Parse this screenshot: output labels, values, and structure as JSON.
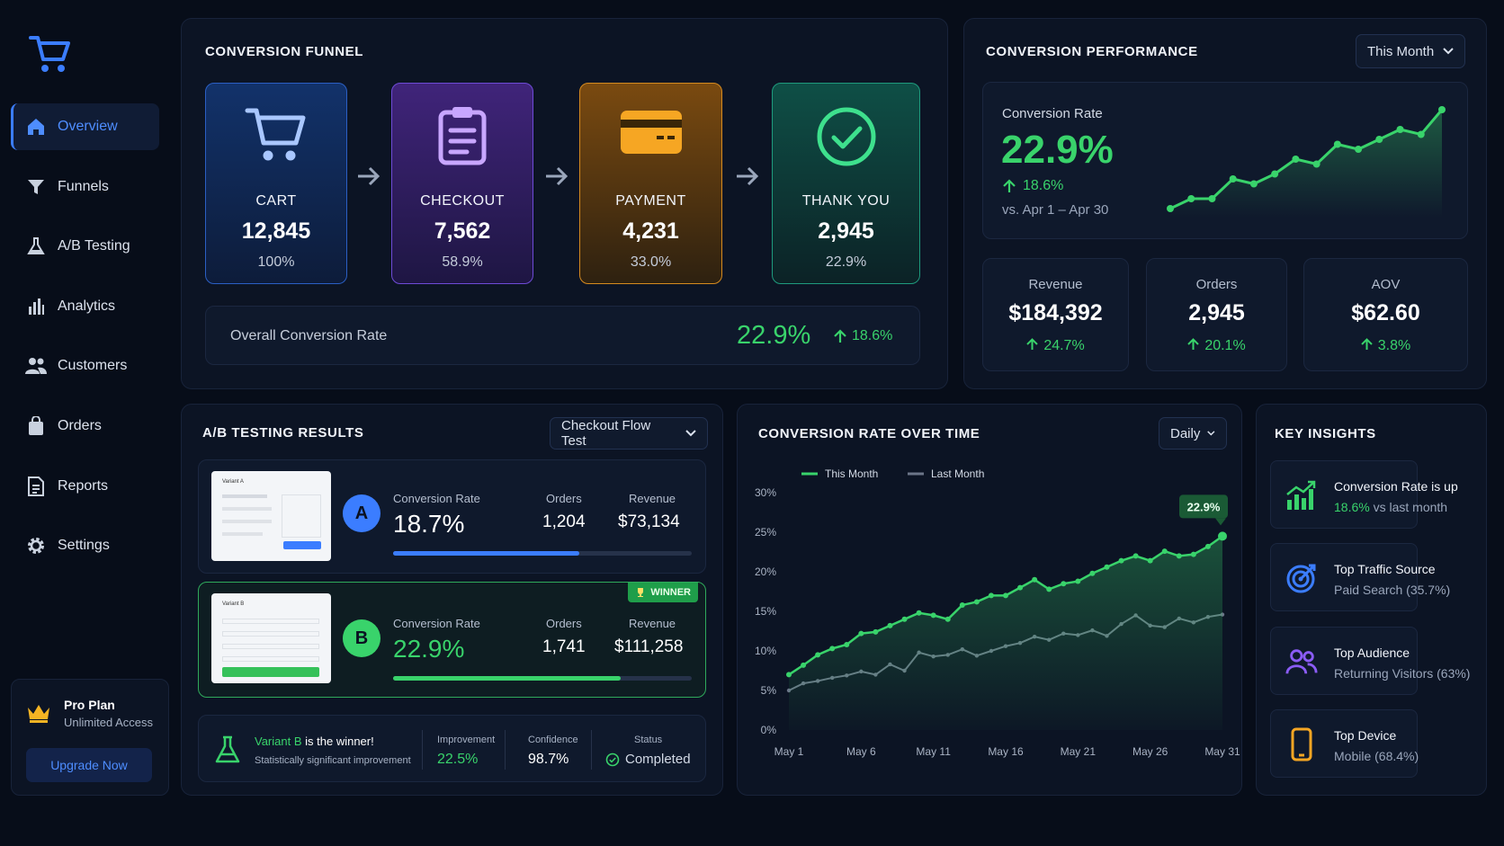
{
  "sidebar": {
    "logo": "shopping-cart-logo",
    "items": [
      {
        "label": "Overview",
        "icon": "home-icon",
        "active": true
      },
      {
        "label": "Funnels",
        "icon": "funnel-icon"
      },
      {
        "label": "A/B Testing",
        "icon": "flask-icon"
      },
      {
        "label": "Analytics",
        "icon": "bar-chart-icon"
      },
      {
        "label": "Customers",
        "icon": "users-icon"
      },
      {
        "label": "Orders",
        "icon": "bag-icon"
      },
      {
        "label": "Reports",
        "icon": "document-icon"
      },
      {
        "label": "Settings",
        "icon": "gear-icon"
      }
    ],
    "plan": {
      "title": "Pro Plan",
      "subtitle": "Unlimited Access",
      "button": "Upgrade Now"
    }
  },
  "funnel": {
    "title": "CONVERSION FUNNEL",
    "steps": [
      {
        "label": "CART",
        "value": "12,845",
        "pct": "100%"
      },
      {
        "label": "CHECKOUT",
        "value": "7,562",
        "pct": "58.9%"
      },
      {
        "label": "PAYMENT",
        "value": "4,231",
        "pct": "33.0%"
      },
      {
        "label": "THANK YOU",
        "value": "2,945",
        "pct": "22.9%"
      }
    ],
    "overall": {
      "label": "Overall Conversion Rate",
      "value": "22.9%",
      "delta": "18.6%"
    }
  },
  "performance": {
    "title": "CONVERSION PERFORMANCE",
    "range": "This Month",
    "rate_label": "Conversion Rate",
    "rate_value": "22.9%",
    "rate_delta": "18.6%",
    "compare": "vs. Apr 1 – Apr 30",
    "kpis": [
      {
        "label": "Revenue",
        "value": "$184,392",
        "delta": "24.7%"
      },
      {
        "label": "Orders",
        "value": "2,945",
        "delta": "20.1%"
      },
      {
        "label": "AOV",
        "value": "$62.60",
        "delta": "3.8%"
      }
    ]
  },
  "ab": {
    "title": "A/B TESTING RESULTS",
    "test": "Checkout Flow Test",
    "variants": [
      {
        "badge": "A",
        "thumb_title": "Variant A",
        "rate_label": "Conversion Rate",
        "rate": "18.7%",
        "rate_fraction": 0.187,
        "orders_label": "Orders",
        "orders": "1,204",
        "revenue_label": "Revenue",
        "revenue": "$73,134"
      },
      {
        "badge": "B",
        "thumb_title": "Variant B",
        "rate_label": "Conversion Rate",
        "rate": "22.9%",
        "rate_fraction": 0.229,
        "orders_label": "Orders",
        "orders": "1,741",
        "revenue_label": "Revenue",
        "revenue": "$111,258",
        "winner": "WINNER"
      }
    ],
    "summary": {
      "winner_name": "Variant B",
      "winner_text": "is the winner!",
      "sub": "Statistically significant improvement",
      "improvement_label": "Improvement",
      "improvement": "22.5%",
      "confidence_label": "Confidence",
      "confidence": "98.7%",
      "status_label": "Status",
      "status": "Completed"
    }
  },
  "over_time": {
    "title": "CONVERSION RATE OVER TIME",
    "granularity": "Daily",
    "callout": "22.9%"
  },
  "insights": {
    "title": "KEY INSIGHTS",
    "items": [
      {
        "icon": "trend-up-chart-icon",
        "title": "Conversion Rate is up",
        "sub_highlight": "18.6%",
        "sub": " vs last month"
      },
      {
        "icon": "target-icon",
        "title": "Top Traffic Source",
        "sub": "Paid Search (35.7%)"
      },
      {
        "icon": "audience-users-icon",
        "title": "Top Audience",
        "sub": "Returning Visitors (63%)"
      },
      {
        "icon": "mobile-phone-icon",
        "title": "Top Device",
        "sub": "Mobile (68.4%)"
      }
    ]
  },
  "chart_data": [
    {
      "type": "area",
      "title": "",
      "x": [
        1,
        2,
        3,
        4,
        5,
        6,
        7,
        8,
        9,
        10,
        11,
        12,
        13,
        14
      ],
      "series": [
        {
          "values": [
            1,
            2,
            2,
            4,
            3.5,
            4.5,
            6,
            5.5,
            7.5,
            7,
            8,
            9,
            8.5,
            11
          ]
        }
      ],
      "grid": false
    },
    {
      "type": "line",
      "title": "CONVERSION RATE OVER TIME",
      "xlabel": "",
      "ylabel": "",
      "x_ticks": [
        "May 1",
        "May 6",
        "May 11",
        "May 16",
        "May 21",
        "May 26",
        "May 31"
      ],
      "y_ticks": [
        "0%",
        "5%",
        "10%",
        "15%",
        "20%",
        "25%",
        "30%"
      ],
      "ylim": [
        0,
        30
      ],
      "x": [
        1,
        2,
        3,
        4,
        5,
        6,
        7,
        8,
        9,
        10,
        11,
        12,
        13,
        14,
        15,
        16,
        17,
        18,
        19,
        20,
        21,
        22,
        23,
        24,
        25,
        26,
        27,
        28,
        29,
        30,
        31
      ],
      "legend": "top-left",
      "series": [
        {
          "name": "This Month",
          "color": "#39d36b",
          "values": [
            7.0,
            8.2,
            9.5,
            10.3,
            10.8,
            12.2,
            12.4,
            13.2,
            14.0,
            14.8,
            14.5,
            14.0,
            15.8,
            16.2,
            17.0,
            17.0,
            18.0,
            19.0,
            17.8,
            18.5,
            18.8,
            19.8,
            20.6,
            21.4,
            22.0,
            21.4,
            22.6,
            22.0,
            22.2,
            23.2,
            24.5
          ]
        },
        {
          "name": "Last Month",
          "color": "#6b7588",
          "values": [
            5.0,
            5.9,
            6.2,
            6.6,
            6.9,
            7.4,
            7.0,
            8.3,
            7.5,
            9.8,
            9.3,
            9.5,
            10.2,
            9.4,
            10.0,
            10.6,
            11.0,
            11.8,
            11.4,
            12.2,
            12.0,
            12.6,
            11.9,
            13.4,
            14.5,
            13.2,
            13.0,
            14.1,
            13.6,
            14.3,
            14.6
          ]
        }
      ]
    }
  ]
}
